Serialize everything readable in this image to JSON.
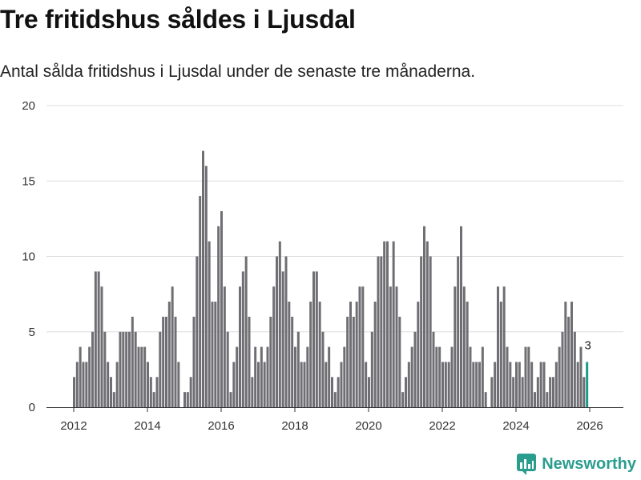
{
  "colors": {
    "bar": "#6f6e73",
    "highlight": "#1a9c8c",
    "grid": "#dddddd",
    "brand": "#2a9d8f"
  },
  "brand": {
    "name": "Newsworthy",
    "icon": "bar-chart-logo-icon"
  },
  "chart_data": {
    "type": "bar",
    "title": "Tre fritidshus såldes i Ljusdal",
    "subtitle": "Antal sålda fritidshus i Ljusdal under de senaste tre månaderna.",
    "ylim": [
      0,
      20
    ],
    "yticks": [
      0,
      5,
      10,
      15,
      20
    ],
    "xticks": [
      "2012",
      "2014",
      "2016",
      "2018",
      "2020",
      "2022",
      "2024",
      "2026"
    ],
    "start": "2012-01",
    "annotation": {
      "label": "3"
    },
    "values": [
      2,
      3,
      4,
      3,
      3,
      4,
      5,
      9,
      9,
      8,
      5,
      3,
      2,
      1,
      3,
      5,
      5,
      5,
      5,
      6,
      5,
      4,
      4,
      4,
      3,
      2,
      1,
      2,
      5,
      6,
      6,
      7,
      8,
      6,
      3,
      0,
      1,
      1,
      2,
      6,
      10,
      14,
      17,
      16,
      11,
      7,
      7,
      12,
      13,
      8,
      5,
      1,
      3,
      4,
      8,
      9,
      10,
      6,
      2,
      4,
      3,
      4,
      3,
      4,
      6,
      8,
      10,
      11,
      9,
      10,
      7,
      6,
      4,
      5,
      3,
      3,
      4,
      7,
      9,
      9,
      7,
      5,
      3,
      4,
      2,
      1,
      2,
      3,
      4,
      6,
      7,
      6,
      7,
      8,
      8,
      3,
      2,
      5,
      7,
      10,
      10,
      11,
      11,
      8,
      11,
      8,
      6,
      1,
      2,
      3,
      4,
      5,
      7,
      10,
      12,
      11,
      10,
      5,
      4,
      4,
      3,
      3,
      3,
      4,
      8,
      10,
      12,
      8,
      7,
      4,
      3,
      3,
      3,
      4,
      1,
      0,
      2,
      3,
      8,
      7,
      8,
      4,
      3,
      2,
      3,
      3,
      2,
      4,
      4,
      3,
      1,
      2,
      3,
      3,
      1,
      2,
      2,
      3,
      4,
      5,
      7,
      6,
      7,
      5,
      3,
      4,
      2,
      3
    ],
    "highlight_last": 1
  }
}
